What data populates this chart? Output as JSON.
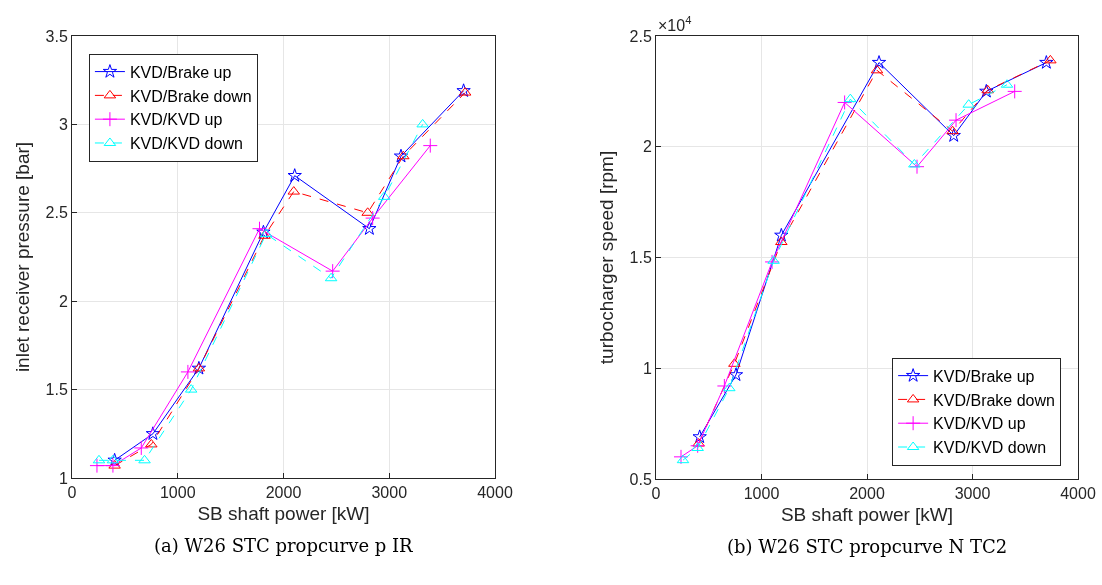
{
  "chart_data": [
    {
      "type": "line",
      "xlabel": "SB shaft power [kW]",
      "ylabel": "inlet receiver pressure [bar]",
      "annotations": [
        "(a) W26 STC propcurve p IR"
      ],
      "xlim": [
        0,
        4000
      ],
      "xticks": [
        0,
        1000,
        2000,
        3000,
        4000
      ],
      "ylim": [
        1,
        3.5
      ],
      "yticks": [
        1,
        1.5,
        2,
        2.5,
        3,
        3.5
      ],
      "grid": true,
      "legend": "top left",
      "series": [
        {
          "name": "KVD/Brake up",
          "color": "#0000ff",
          "marker": "star",
          "line_style": "solid",
          "x": [
            403,
            765,
            1200,
            1810,
            2106,
            2812,
            3111,
            3703
          ],
          "values": [
            1.1,
            1.25,
            1.62,
            2.39,
            2.71,
            2.41,
            2.82,
            3.19
          ]
        },
        {
          "name": "KVD/Brake down",
          "color": "#ff0000",
          "marker": "triangle",
          "line_style": "dashed",
          "x": [
            403,
            750,
            1200,
            1820,
            2097,
            2796,
            3133,
            3718
          ],
          "values": [
            1.07,
            1.19,
            1.62,
            2.37,
            2.62,
            2.5,
            2.82,
            3.18
          ]
        },
        {
          "name": "KVD/KVD up",
          "color": "#ff00ff",
          "marker": "cross",
          "line_style": "solid",
          "x": [
            236,
            387,
            655,
            1096,
            1773,
            2465,
            2843,
            3388
          ],
          "values": [
            1.07,
            1.07,
            1.17,
            1.6,
            2.41,
            2.17,
            2.47,
            2.88
          ]
        },
        {
          "name": "KVD/KVD down",
          "color": "#00ffff",
          "marker": "triangle",
          "line_style": "dashed",
          "x": [
            255,
            387,
            686,
            1127,
            1836,
            2450,
            2953,
            3316
          ],
          "values": [
            1.1,
            1.1,
            1.1,
            1.5,
            2.38,
            2.13,
            2.59,
            3.0
          ]
        }
      ]
    },
    {
      "type": "line",
      "xlabel": "SB shaft power [kW]",
      "ylabel": "turbocharger speed [rpm]",
      "annotations": [
        "×10$^{4}$",
        "(b) W26 STC propcurve N TC2"
      ],
      "xlim": [
        0,
        4000
      ],
      "xticks": [
        0,
        1000,
        2000,
        3000,
        4000
      ],
      "ylim": [
        0.5,
        2.5
      ],
      "yticks": [
        0.5,
        1,
        1.5,
        2,
        2.5
      ],
      "grid": true,
      "legend": "bottom right",
      "series": [
        {
          "name": "KVD/Brake up",
          "color": "#0000ff",
          "marker": "star",
          "line_style": "solid",
          "x": [
            414,
            758,
            1188,
            2114,
            2822,
            3131,
            3700
          ],
          "values": [
            0.69,
            0.97,
            1.6,
            2.38,
            2.05,
            2.25,
            2.38
          ]
        },
        {
          "name": "KVD/Brake down",
          "color": "#ff0000",
          "marker": "triangle",
          "line_style": "dashed",
          "x": [
            404,
            743,
            1188,
            2095,
            2812,
            3144,
            3738
          ],
          "values": [
            0.66,
            1.02,
            1.57,
            2.345,
            2.07,
            2.255,
            2.39
          ]
        },
        {
          "name": "KVD/KVD up",
          "color": "#ff00ff",
          "marker": "cross",
          "line_style": "solid",
          "x": [
            237,
            395,
            648,
            1100,
            1788,
            2474,
            2844,
            3400
          ],
          "values": [
            0.6,
            0.65,
            0.92,
            1.48,
            2.2,
            1.91,
            2.12,
            2.25
          ]
        },
        {
          "name": "KVD/KVD down",
          "color": "#00ffff",
          "marker": "triangle",
          "line_style": "dashed",
          "x": [
            256,
            395,
            695,
            1115,
            1842,
            2449,
            2964,
            3327
          ],
          "values": [
            0.585,
            0.64,
            0.91,
            1.485,
            2.215,
            1.92,
            2.19,
            2.28
          ]
        }
      ]
    }
  ]
}
